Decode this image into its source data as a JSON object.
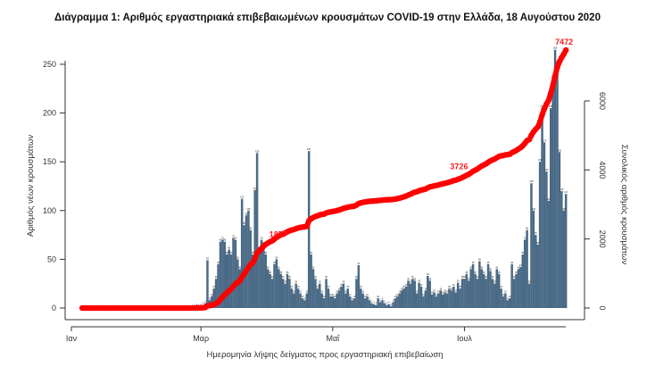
{
  "chart_data": {
    "type": "bar+line",
    "title": "Διάγραμμα 1: Αριθμός εργαστηριακά επιβεβαιωμένων κρουσμάτων COVID-19 στην Ελλάδα, 18 Αυγούστου 2020",
    "xlabel": "Ημερομηνία λήψης δείγματος προς εργαστηριακή επιβεβαίωση",
    "ylabel_left": "Αριθμός νέων κρουσμάτων",
    "ylabel_right": "Συνολικός αριθμός κρουσμάτων",
    "x_tick_labels": [
      {
        "label": "Ιαν",
        "day": 0
      },
      {
        "label": "Μαρ",
        "day": 60
      },
      {
        "label": "Μαΐ",
        "day": 121
      },
      {
        "label": "Ιουλ",
        "day": 182
      }
    ],
    "y_left": {
      "ticks": [
        "0",
        "50",
        "100",
        "150",
        "200",
        "250"
      ],
      "range": [
        0,
        250
      ]
    },
    "y_right": {
      "ticks": [
        "0",
        "2000",
        "4000",
        "6000"
      ],
      "range": [
        0,
        6000
      ]
    },
    "first_day": 5,
    "daily_cases": [
      0,
      0,
      0,
      0,
      0,
      0,
      0,
      0,
      0,
      0,
      0,
      0,
      0,
      0,
      0,
      0,
      0,
      0,
      0,
      0,
      0,
      0,
      0,
      0,
      0,
      0,
      0,
      0,
      0,
      0,
      0,
      0,
      0,
      0,
      0,
      0,
      0,
      0,
      0,
      0,
      0,
      0,
      0,
      0,
      0,
      0,
      0,
      0,
      0,
      0,
      0,
      1,
      1,
      2,
      1,
      2,
      3,
      5,
      49,
      8,
      12,
      20,
      30,
      45,
      68,
      70,
      68,
      55,
      60,
      55,
      72,
      70,
      50,
      40,
      112,
      85,
      95,
      100,
      80,
      55,
      121,
      159,
      60,
      70,
      65,
      55,
      40,
      35,
      30,
      45,
      50,
      40,
      35,
      30,
      25,
      35,
      30,
      20,
      15,
      25,
      20,
      15,
      10,
      8,
      15,
      161,
      55,
      40,
      30,
      20,
      25,
      15,
      10,
      30,
      20,
      12,
      12,
      10,
      15,
      18,
      22,
      25,
      15,
      20,
      12,
      8,
      10,
      30,
      44,
      20,
      15,
      10,
      12,
      8,
      5,
      4,
      3,
      10,
      6,
      8,
      5,
      3,
      4,
      2,
      6,
      10,
      12,
      15,
      18,
      20,
      22,
      28,
      25,
      30,
      28,
      15,
      26,
      22,
      12,
      18,
      33,
      28,
      14,
      16,
      12,
      15,
      18,
      14,
      16,
      15,
      20,
      18,
      22,
      16,
      26,
      20,
      30,
      30,
      35,
      28,
      40,
      45,
      35,
      30,
      48,
      40,
      35,
      30,
      45,
      38,
      30,
      25,
      40,
      35,
      20,
      12,
      15,
      8,
      10,
      45,
      30,
      35,
      40,
      42,
      55,
      70,
      80,
      25,
      128,
      100,
      75,
      65,
      150,
      205,
      170,
      140,
      110,
      205,
      235,
      265,
      250,
      160,
      120,
      100,
      117
    ],
    "series": [
      {
        "name": "Νέα κρούσματα",
        "type": "bar",
        "axis": "left",
        "color": "#4a6a86"
      },
      {
        "name": "Συνολικός αριθμός",
        "type": "line",
        "axis": "right",
        "color": "#ff0000"
      }
    ],
    "annotations": [
      {
        "label": "1877",
        "day": 90
      },
      {
        "label": "3726",
        "day": 182
      },
      {
        "label": "7472",
        "day": 229
      }
    ]
  }
}
